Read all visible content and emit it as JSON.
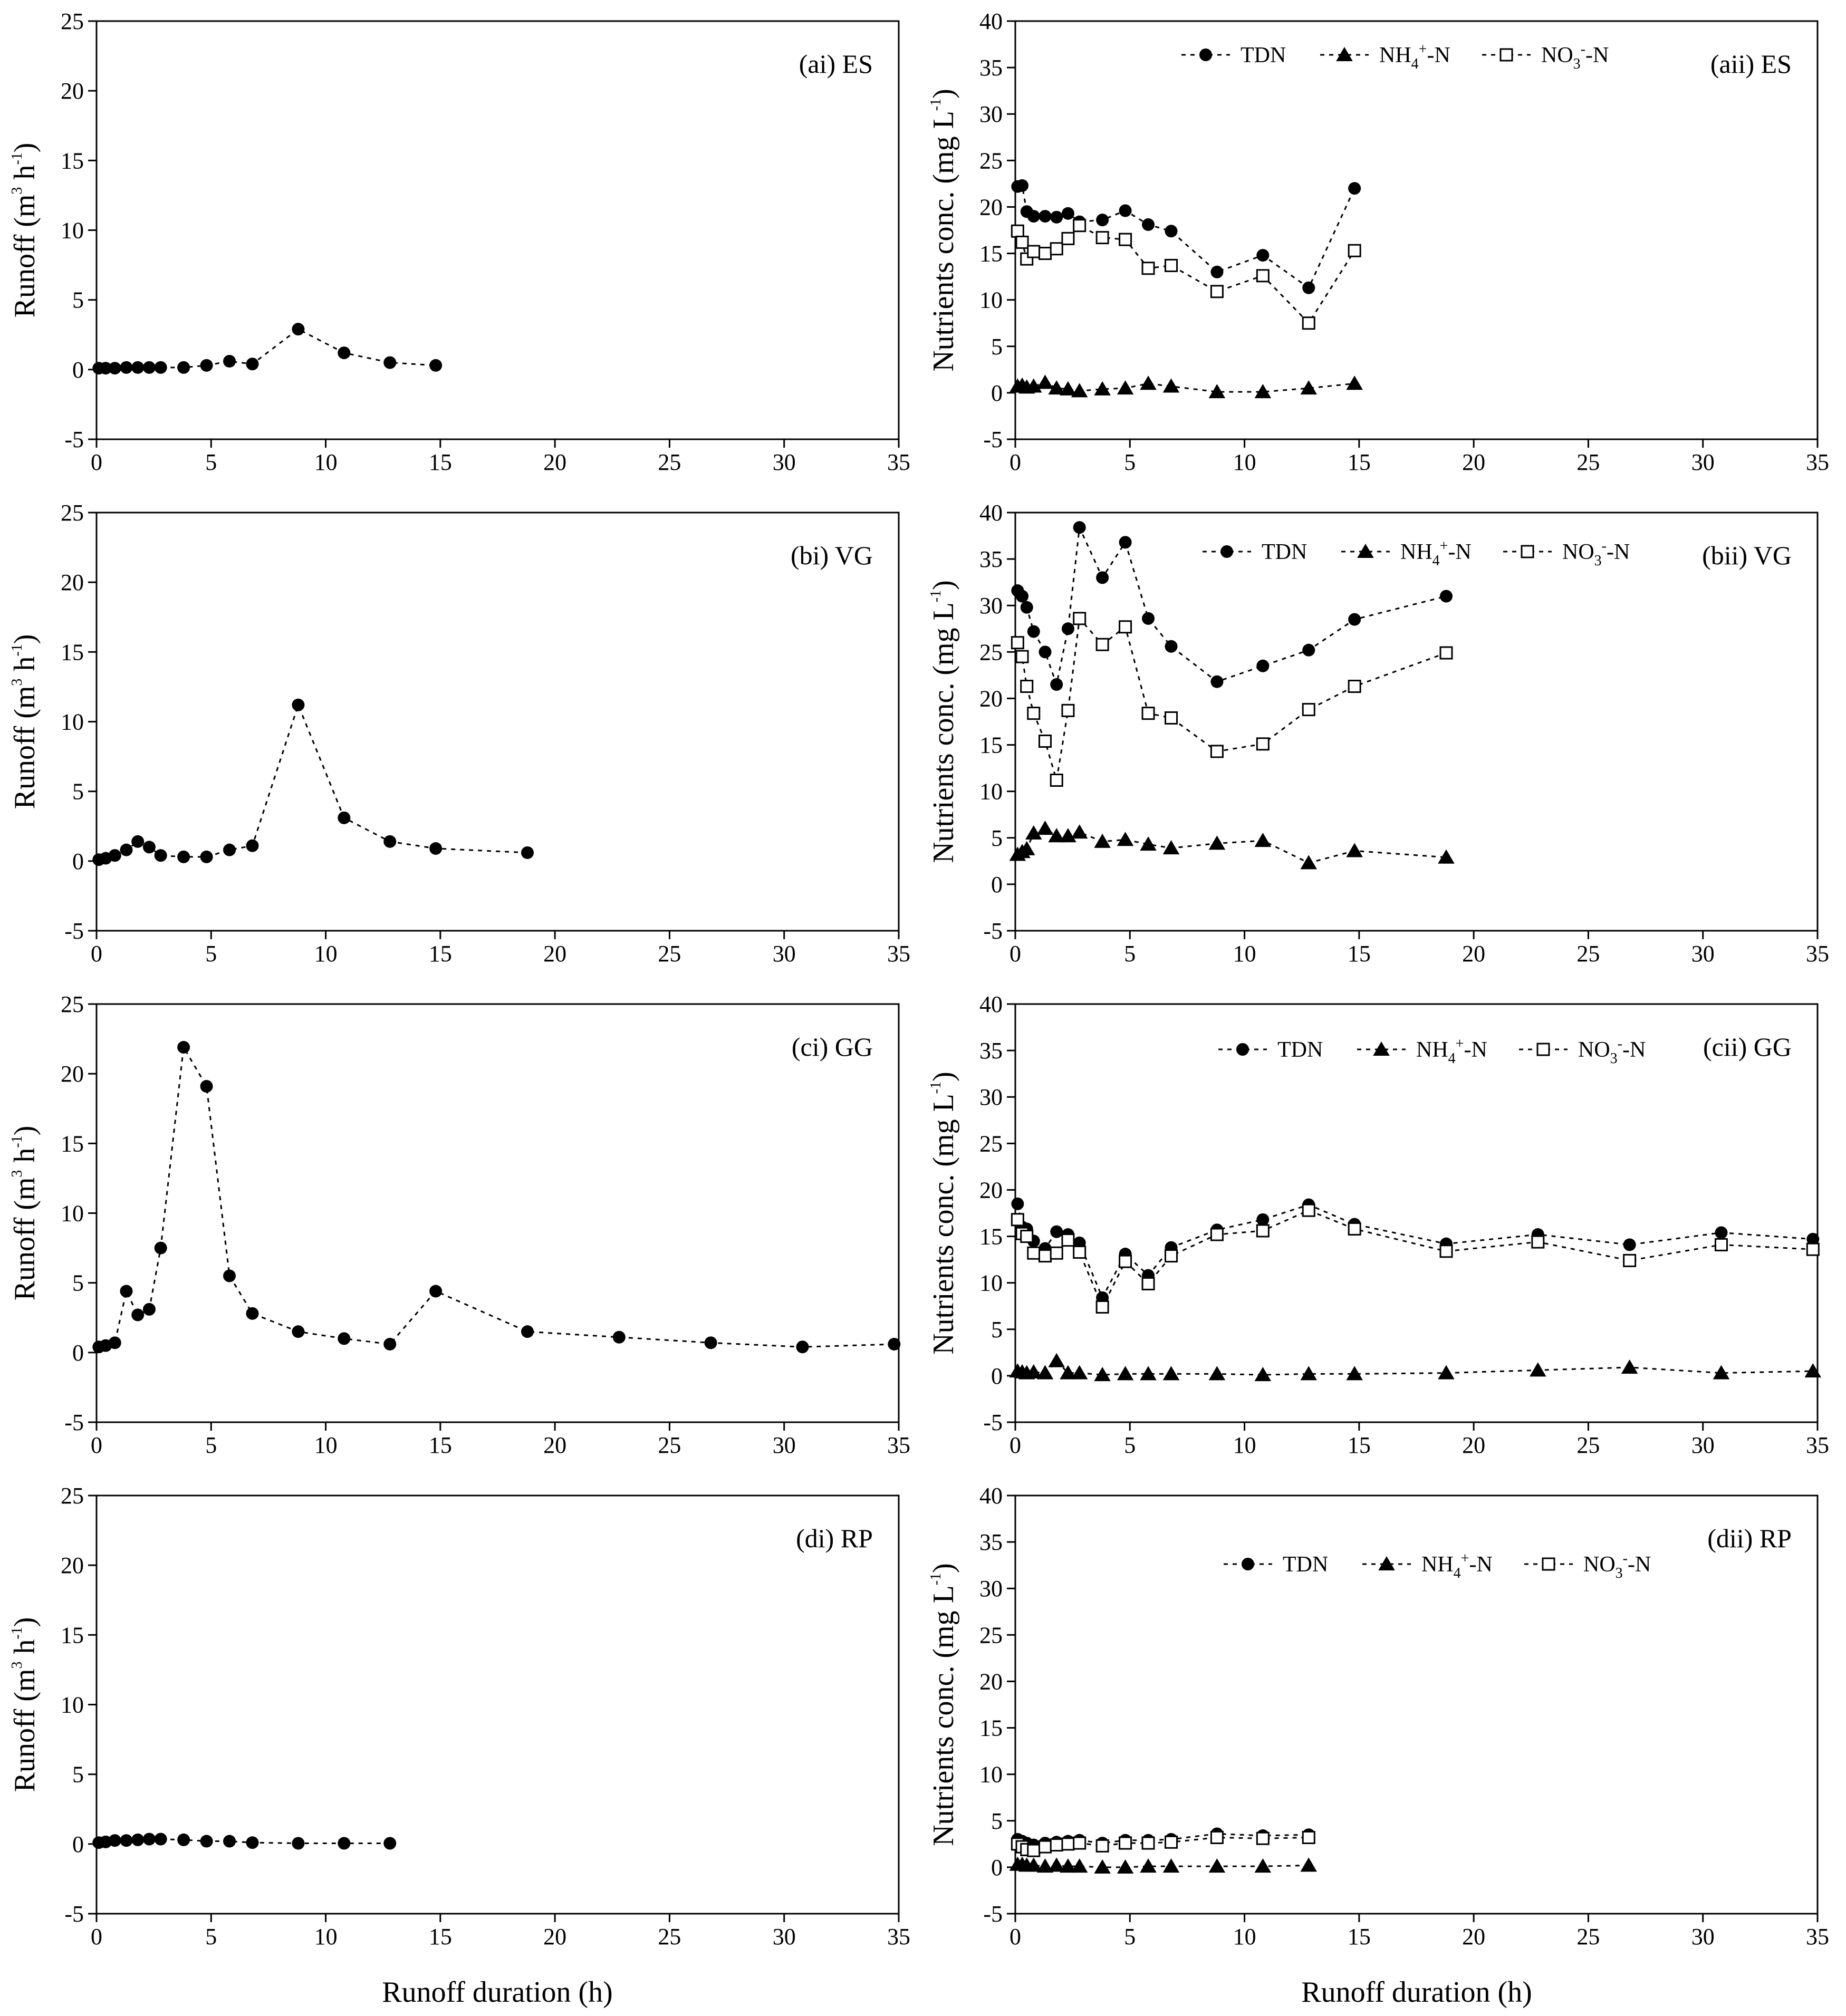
{
  "figure": {
    "xlabel_left": "Runoff duration (h)",
    "xlabel_right": "Runoff duration (h)"
  },
  "colors": {
    "axis": "#000000",
    "marker": "#000000",
    "open_marker_fill": "#ffffff",
    "background": "#ffffff"
  },
  "chart_data": [
    {
      "id": "ai",
      "type": "line",
      "title": "(ai) ES",
      "xlabel": "",
      "ylabel": "Runoff (m3 h-1)",
      "xlim": [
        0,
        35
      ],
      "ylim": [
        -5,
        25
      ],
      "xticks": [
        "0",
        "5",
        "10",
        "15",
        "20",
        "25",
        "30",
        "35"
      ],
      "yticks": [
        "-5",
        "0",
        "5",
        "10",
        "15",
        "20",
        "25"
      ],
      "legend": null,
      "series": [
        {
          "name": "Runoff",
          "marker": "circle",
          "x": [
            0.1,
            0.4,
            0.8,
            1.3,
            1.8,
            2.3,
            2.8,
            3.8,
            4.8,
            5.8,
            6.8,
            8.8,
            10.8,
            12.8,
            14.8
          ],
          "y": [
            0.1,
            0.1,
            0.1,
            0.15,
            0.15,
            0.15,
            0.15,
            0.15,
            0.3,
            0.6,
            0.4,
            2.9,
            1.2,
            0.5,
            0.3
          ]
        }
      ]
    },
    {
      "id": "aii",
      "type": "line",
      "title": "(aii) ES",
      "xlabel": "",
      "ylabel": "Nutrients conc. (mg L-1)",
      "xlim": [
        0,
        35
      ],
      "ylim": [
        -5,
        40
      ],
      "xticks": [
        "0",
        "5",
        "10",
        "15",
        "20",
        "25",
        "30",
        "35"
      ],
      "yticks": [
        "-5",
        "0",
        "5",
        "10",
        "15",
        "20",
        "25",
        "30",
        "35",
        "40"
      ],
      "legend": [
        "TDN",
        "NH4+-N",
        "NO3--N"
      ],
      "series": [
        {
          "name": "TDN",
          "marker": "circle",
          "x": [
            0.1,
            0.3,
            0.5,
            0.8,
            1.3,
            1.8,
            2.3,
            2.8,
            3.8,
            4.8,
            5.8,
            6.8,
            8.8,
            10.8,
            12.8,
            14.8
          ],
          "y": [
            22.2,
            22.3,
            19.5,
            19.0,
            19.0,
            18.9,
            19.3,
            18.4,
            18.6,
            19.6,
            18.1,
            17.4,
            13.0,
            14.8,
            11.3,
            22.0
          ]
        },
        {
          "name": "NH4+-N",
          "marker": "triangle",
          "x": [
            0.1,
            0.3,
            0.5,
            0.8,
            1.3,
            1.8,
            2.3,
            2.8,
            3.8,
            4.8,
            5.8,
            6.8,
            8.8,
            10.8,
            12.8,
            14.8
          ],
          "y": [
            0.7,
            0.8,
            0.6,
            0.7,
            1.1,
            0.5,
            0.4,
            0.2,
            0.4,
            0.5,
            1.0,
            0.7,
            0.1,
            0.1,
            0.5,
            1.0
          ]
        },
        {
          "name": "NO3--N",
          "marker": "open-square",
          "x": [
            0.1,
            0.3,
            0.5,
            0.8,
            1.3,
            1.8,
            2.3,
            2.8,
            3.8,
            4.8,
            5.8,
            6.8,
            8.8,
            10.8,
            12.8,
            14.8
          ],
          "y": [
            17.4,
            16.2,
            14.4,
            15.2,
            15.0,
            15.5,
            16.6,
            18.0,
            16.7,
            16.5,
            13.4,
            13.7,
            10.9,
            12.6,
            7.5,
            15.3
          ]
        }
      ]
    },
    {
      "id": "bi",
      "type": "line",
      "title": "(bi) VG",
      "xlabel": "",
      "ylabel": "Runoff (m3 h-1)",
      "xlim": [
        0,
        35
      ],
      "ylim": [
        -5,
        25
      ],
      "xticks": [
        "0",
        "5",
        "10",
        "15",
        "20",
        "25",
        "30",
        "35"
      ],
      "yticks": [
        "-5",
        "0",
        "5",
        "10",
        "15",
        "20",
        "25"
      ],
      "legend": null,
      "series": [
        {
          "name": "Runoff",
          "marker": "circle",
          "x": [
            0.1,
            0.4,
            0.8,
            1.3,
            1.8,
            2.3,
            2.8,
            3.8,
            4.8,
            5.8,
            6.8,
            8.8,
            10.8,
            12.8,
            14.8,
            18.8
          ],
          "y": [
            0.1,
            0.2,
            0.4,
            0.8,
            1.4,
            1.0,
            0.4,
            0.3,
            0.3,
            0.8,
            1.1,
            11.2,
            3.1,
            1.4,
            0.9,
            0.6
          ]
        }
      ]
    },
    {
      "id": "bii",
      "type": "line",
      "title": "(bii) VG",
      "xlabel": "",
      "ylabel": "Nutrients conc. (mg L-1)",
      "xlim": [
        0,
        35
      ],
      "ylim": [
        -5,
        40
      ],
      "xticks": [
        "0",
        "5",
        "10",
        "15",
        "20",
        "25",
        "30",
        "35"
      ],
      "yticks": [
        "-5",
        "0",
        "5",
        "10",
        "15",
        "20",
        "25",
        "30",
        "35",
        "40"
      ],
      "legend": [
        "TDN",
        "NH4+-N",
        "NO3--N"
      ],
      "series": [
        {
          "name": "TDN",
          "marker": "circle",
          "x": [
            0.1,
            0.3,
            0.5,
            0.8,
            1.3,
            1.8,
            2.3,
            2.8,
            3.8,
            4.8,
            5.8,
            6.8,
            8.8,
            10.8,
            12.8,
            14.8,
            18.8
          ],
          "y": [
            31.6,
            31.0,
            29.8,
            27.2,
            25.0,
            21.5,
            27.5,
            38.4,
            33.0,
            36.8,
            28.6,
            25.6,
            21.8,
            23.5,
            25.2,
            28.5,
            31.0
          ]
        },
        {
          "name": "NH4+-N",
          "marker": "triangle",
          "x": [
            0.1,
            0.3,
            0.5,
            0.8,
            1.3,
            1.8,
            2.3,
            2.8,
            3.8,
            4.8,
            5.8,
            6.8,
            8.8,
            10.8,
            12.8,
            14.8,
            18.8
          ],
          "y": [
            3.2,
            3.5,
            3.8,
            5.5,
            6.0,
            5.2,
            5.2,
            5.6,
            4.6,
            4.8,
            4.3,
            3.9,
            4.4,
            4.7,
            2.3,
            3.6,
            2.9
          ]
        },
        {
          "name": "NO3--N",
          "marker": "open-square",
          "x": [
            0.1,
            0.3,
            0.5,
            0.8,
            1.3,
            1.8,
            2.3,
            2.8,
            3.8,
            4.8,
            5.8,
            6.8,
            8.8,
            10.8,
            12.8,
            14.8,
            18.8
          ],
          "y": [
            26.0,
            24.5,
            21.3,
            18.4,
            15.4,
            11.2,
            18.7,
            28.6,
            25.8,
            27.7,
            18.4,
            17.9,
            14.3,
            15.1,
            18.8,
            21.3,
            24.9
          ]
        }
      ]
    },
    {
      "id": "ci",
      "type": "line",
      "title": "(ci) GG",
      "xlabel": "",
      "ylabel": "Runoff (m3 h-1)",
      "xlim": [
        0,
        35
      ],
      "ylim": [
        -5,
        25
      ],
      "xticks": [
        "0",
        "5",
        "10",
        "15",
        "20",
        "25",
        "30",
        "35"
      ],
      "yticks": [
        "-5",
        "0",
        "5",
        "10",
        "15",
        "20",
        "25"
      ],
      "legend": null,
      "series": [
        {
          "name": "Runoff",
          "marker": "circle",
          "x": [
            0.1,
            0.4,
            0.8,
            1.3,
            1.8,
            2.3,
            2.8,
            3.8,
            4.8,
            5.8,
            6.8,
            8.8,
            10.8,
            12.8,
            14.8,
            18.8,
            22.8,
            26.8,
            30.8,
            34.8
          ],
          "y": [
            0.4,
            0.5,
            0.7,
            4.4,
            2.7,
            3.1,
            7.5,
            21.9,
            19.1,
            5.5,
            2.8,
            1.5,
            1.0,
            0.6,
            4.4,
            1.5,
            1.1,
            0.7,
            0.4,
            0.6
          ]
        }
      ]
    },
    {
      "id": "cii",
      "type": "line",
      "title": "(cii) GG",
      "xlabel": "",
      "ylabel": "Nutrients conc. (mg L-1)",
      "xlim": [
        0,
        35
      ],
      "ylim": [
        -5,
        40
      ],
      "xticks": [
        "0",
        "5",
        "10",
        "15",
        "20",
        "25",
        "30",
        "35"
      ],
      "yticks": [
        "-5",
        "0",
        "5",
        "10",
        "15",
        "20",
        "25",
        "30",
        "35",
        "40"
      ],
      "legend": [
        "TDN",
        "NH4+-N",
        "NO3--N"
      ],
      "series": [
        {
          "name": "TDN",
          "marker": "circle",
          "x": [
            0.1,
            0.3,
            0.5,
            0.8,
            1.3,
            1.8,
            2.3,
            2.8,
            3.8,
            4.8,
            5.8,
            6.8,
            8.8,
            10.8,
            12.8,
            14.8,
            18.8,
            22.8,
            26.8,
            30.8,
            34.8
          ],
          "y": [
            18.5,
            16.0,
            15.8,
            14.5,
            13.7,
            15.5,
            15.2,
            14.3,
            8.4,
            13.1,
            10.8,
            13.8,
            15.7,
            16.8,
            18.4,
            16.3,
            14.2,
            15.2,
            14.1,
            15.4,
            14.7
          ]
        },
        {
          "name": "NH4+-N",
          "marker": "triangle",
          "x": [
            0.1,
            0.3,
            0.5,
            0.8,
            1.3,
            1.8,
            2.3,
            2.8,
            3.8,
            4.8,
            5.8,
            6.8,
            8.8,
            10.8,
            12.8,
            14.8,
            18.8,
            22.8,
            26.8,
            30.8,
            34.8
          ],
          "y": [
            0.5,
            0.4,
            0.3,
            0.4,
            0.3,
            1.6,
            0.3,
            0.3,
            0.1,
            0.2,
            0.2,
            0.2,
            0.2,
            0.1,
            0.2,
            0.2,
            0.3,
            0.6,
            0.9,
            0.3,
            0.5
          ]
        },
        {
          "name": "NO3--N",
          "marker": "open-square",
          "x": [
            0.1,
            0.3,
            0.5,
            0.8,
            1.3,
            1.8,
            2.3,
            2.8,
            3.8,
            4.8,
            5.8,
            6.8,
            8.8,
            10.8,
            12.8,
            14.8,
            18.8,
            22.8,
            26.8,
            30.8,
            34.8
          ],
          "y": [
            16.8,
            15.3,
            15.0,
            13.2,
            12.9,
            13.2,
            14.6,
            13.3,
            7.4,
            12.3,
            9.9,
            12.9,
            15.2,
            15.6,
            17.8,
            15.8,
            13.4,
            14.4,
            12.4,
            14.1,
            13.6
          ]
        }
      ]
    },
    {
      "id": "di",
      "type": "line",
      "title": "(di) RP",
      "xlabel": "",
      "ylabel": "Runoff (m3 h-1)",
      "xlim": [
        0,
        35
      ],
      "ylim": [
        -5,
        25
      ],
      "xticks": [
        "0",
        "5",
        "10",
        "15",
        "20",
        "25",
        "30",
        "35"
      ],
      "yticks": [
        "-5",
        "0",
        "5",
        "10",
        "15",
        "20",
        "25"
      ],
      "legend": null,
      "series": [
        {
          "name": "Runoff",
          "marker": "circle",
          "x": [
            0.1,
            0.4,
            0.8,
            1.3,
            1.8,
            2.3,
            2.8,
            3.8,
            4.8,
            5.8,
            6.8,
            8.8,
            10.8,
            12.8
          ],
          "y": [
            0.1,
            0.15,
            0.25,
            0.25,
            0.3,
            0.35,
            0.35,
            0.3,
            0.2,
            0.2,
            0.1,
            0.05,
            0.05,
            0.05
          ]
        }
      ]
    },
    {
      "id": "dii",
      "type": "line",
      "title": "(dii) RP",
      "xlabel": "",
      "ylabel": "Nutrients conc. (mg L-1)",
      "xlim": [
        0,
        35
      ],
      "ylim": [
        -5,
        40
      ],
      "xticks": [
        "0",
        "5",
        "10",
        "15",
        "20",
        "25",
        "30",
        "35"
      ],
      "yticks": [
        "-5",
        "0",
        "5",
        "10",
        "15",
        "20",
        "25",
        "30",
        "35",
        "40"
      ],
      "legend": [
        "TDN",
        "NH4+-N",
        "NO3--N"
      ],
      "series": [
        {
          "name": "TDN",
          "marker": "circle",
          "x": [
            0.1,
            0.3,
            0.5,
            0.8,
            1.3,
            1.8,
            2.3,
            2.8,
            3.8,
            4.8,
            5.8,
            6.8,
            8.8,
            10.8,
            12.8
          ],
          "y": [
            3.0,
            2.8,
            2.6,
            2.4,
            2.6,
            2.7,
            2.8,
            2.9,
            2.6,
            2.9,
            2.9,
            3.0,
            3.6,
            3.4,
            3.5
          ]
        },
        {
          "name": "NH4+-N",
          "marker": "triangle",
          "x": [
            0.1,
            0.3,
            0.5,
            0.8,
            1.3,
            1.8,
            2.3,
            2.8,
            3.8,
            4.8,
            5.8,
            6.8,
            8.8,
            10.8,
            12.8
          ],
          "y": [
            0.3,
            0.3,
            0.2,
            0.2,
            0.1,
            0.2,
            0.1,
            0.1,
            0.0,
            0.0,
            0.1,
            0.1,
            0.1,
            0.1,
            0.2
          ]
        },
        {
          "name": "NO3--N",
          "marker": "open-square",
          "x": [
            0.1,
            0.3,
            0.5,
            0.8,
            1.3,
            1.8,
            2.3,
            2.8,
            3.8,
            4.8,
            5.8,
            6.8,
            8.8,
            10.8,
            12.8
          ],
          "y": [
            2.5,
            2.2,
            1.9,
            1.8,
            2.2,
            2.4,
            2.5,
            2.6,
            2.3,
            2.6,
            2.6,
            2.7,
            3.2,
            3.1,
            3.2
          ]
        }
      ]
    }
  ]
}
